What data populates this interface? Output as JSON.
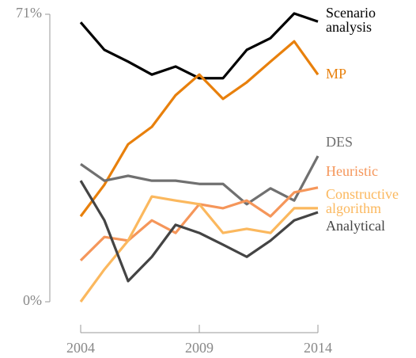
{
  "chart_data": {
    "type": "line",
    "x": [
      2004,
      2005,
      2006,
      2007,
      2008,
      2009,
      2010,
      2011,
      2012,
      2013,
      2014
    ],
    "xlim": [
      2004,
      2014
    ],
    "xticks": [
      2004,
      2009,
      2014
    ],
    "ylim": [
      0,
      71
    ],
    "yticks": [
      {
        "value": 0,
        "label": "0%"
      },
      {
        "value": 71,
        "label": "71%"
      }
    ],
    "series": [
      {
        "name": "Scenario analysis",
        "color": "#000000",
        "values": [
          69.0,
          62.2,
          59.3,
          56.1,
          58.1,
          55.2,
          55.2,
          62.2,
          65.1,
          71.2,
          69.2
        ]
      },
      {
        "name": "MP",
        "color": "#e8800c",
        "values": [
          21.1,
          28.9,
          38.9,
          43.2,
          51.0,
          56.1,
          50.1,
          54.2,
          59.3,
          64.3,
          56.1
        ]
      },
      {
        "name": "DES",
        "color": "#707070",
        "values": [
          34.0,
          29.9,
          31.1,
          29.9,
          29.9,
          29.1,
          29.1,
          24.1,
          28.0,
          25.0,
          36.0
        ]
      },
      {
        "name": "Heuristic",
        "color": "#f5965a",
        "values": [
          10.2,
          16.0,
          15.1,
          20.1,
          17.0,
          24.1,
          23.1,
          25.0,
          21.1,
          27.0,
          28.2
        ]
      },
      {
        "name": "Constructive algorithm",
        "color": "#fbb85e",
        "values": [
          0,
          8.0,
          15.1,
          26.0,
          25.0,
          24.1,
          17.0,
          18.0,
          17.0,
          23.1,
          23.1
        ]
      },
      {
        "name": "Analytical",
        "color": "#444444",
        "values": [
          29.9,
          20.1,
          5.1,
          11.1,
          19.0,
          17.0,
          14.1,
          11.1,
          15.1,
          20.1,
          22.1
        ]
      }
    ]
  }
}
